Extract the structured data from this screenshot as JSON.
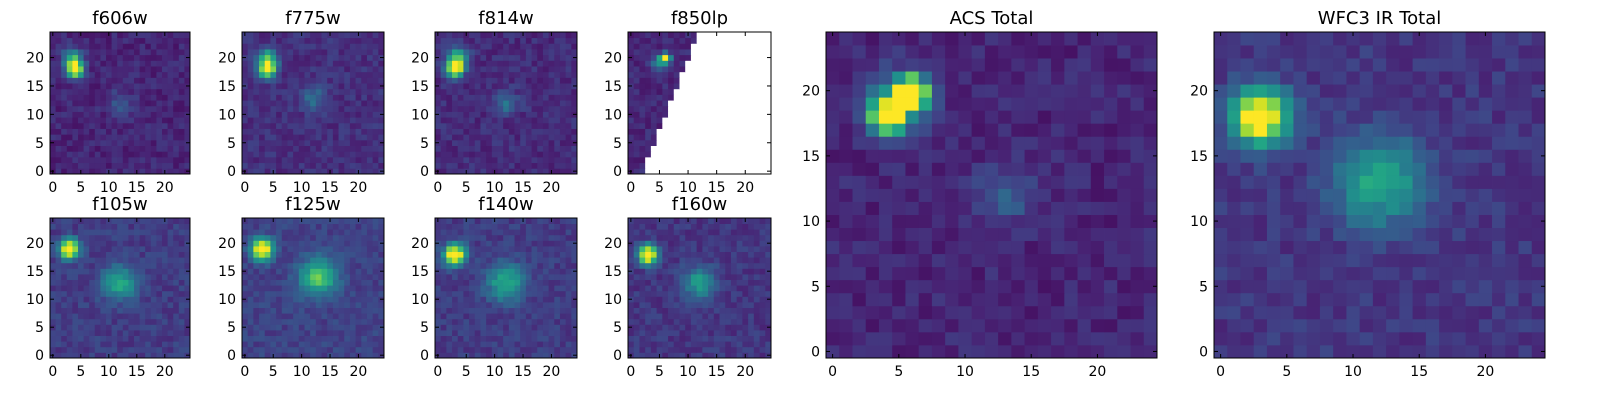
{
  "figure": {
    "description_free": true,
    "colors": {
      "background": "#ffffff",
      "frame": "#000000",
      "masked": "#ffffff"
    }
  },
  "chart_data": [
    {
      "type": "heatmap",
      "title": "f606w",
      "grid": 25,
      "xticks": [
        0,
        5,
        10,
        15,
        20
      ],
      "yticks": [
        0,
        5,
        10,
        15,
        20
      ],
      "xlim": [
        0,
        25
      ],
      "ylim": [
        0,
        25
      ],
      "colormap": "viridis",
      "background_level": 0.05,
      "sources": [
        {
          "x": 4,
          "y": 18,
          "peak": 1.0,
          "sigma": 1.0
        },
        {
          "x": 3.5,
          "y": 20,
          "peak": 0.5,
          "sigma": 1.2
        },
        {
          "x": 12,
          "y": 12,
          "peak": 0.18,
          "sigma": 1.5
        }
      ]
    },
    {
      "type": "heatmap",
      "title": "f775w",
      "grid": 25,
      "xticks": [
        0,
        5,
        10,
        15,
        20
      ],
      "yticks": [
        0,
        5,
        10,
        15,
        20
      ],
      "xlim": [
        0,
        25
      ],
      "ylim": [
        0,
        25
      ],
      "colormap": "viridis",
      "background_level": 0.08,
      "sources": [
        {
          "x": 4,
          "y": 18,
          "peak": 1.0,
          "sigma": 1.0
        },
        {
          "x": 4,
          "y": 20,
          "peak": 0.5,
          "sigma": 1.2
        },
        {
          "x": 12,
          "y": 13,
          "peak": 0.22,
          "sigma": 1.6
        }
      ]
    },
    {
      "type": "heatmap",
      "title": "f814w",
      "grid": 25,
      "xticks": [
        0,
        5,
        10,
        15,
        20
      ],
      "yticks": [
        0,
        5,
        10,
        15,
        20
      ],
      "xlim": [
        0,
        25
      ],
      "ylim": [
        0,
        25
      ],
      "colormap": "viridis",
      "background_level": 0.07,
      "sources": [
        {
          "x": 3,
          "y": 18,
          "peak": 1.0,
          "sigma": 1.0
        },
        {
          "x": 3.5,
          "y": 20,
          "peak": 0.55,
          "sigma": 1.3
        },
        {
          "x": 12,
          "y": 12,
          "peak": 0.25,
          "sigma": 1.4
        }
      ]
    },
    {
      "type": "heatmap",
      "title": "f850lp",
      "grid": 25,
      "xticks": [
        0,
        5,
        10,
        15,
        20
      ],
      "yticks": [
        0,
        5,
        10,
        15,
        20
      ],
      "xlim": [
        0,
        25
      ],
      "ylim": [
        0,
        25
      ],
      "colormap": "viridis",
      "background_level": 0.06,
      "mask": "diagonal",
      "sources": [
        {
          "x": 6,
          "y": 20,
          "peak": 1.0,
          "sigma": 0.6
        },
        {
          "x": 5,
          "y": 19,
          "peak": 0.3,
          "sigma": 1.0
        }
      ]
    },
    {
      "type": "heatmap",
      "title": "f105w",
      "grid": 25,
      "xticks": [
        0,
        5,
        10,
        15,
        20
      ],
      "yticks": [
        0,
        5,
        10,
        15,
        20
      ],
      "xlim": [
        0,
        25
      ],
      "ylim": [
        0,
        25
      ],
      "colormap": "viridis",
      "background_level": 0.12,
      "sources": [
        {
          "x": 3,
          "y": 19,
          "peak": 1.0,
          "sigma": 1.2
        },
        {
          "x": 12,
          "y": 13,
          "peak": 0.42,
          "sigma": 2.2
        }
      ]
    },
    {
      "type": "heatmap",
      "title": "f125w",
      "grid": 25,
      "xticks": [
        0,
        5,
        10,
        15,
        20
      ],
      "yticks": [
        0,
        5,
        10,
        15,
        20
      ],
      "xlim": [
        0,
        25
      ],
      "ylim": [
        0,
        25
      ],
      "colormap": "viridis",
      "background_level": 0.14,
      "sources": [
        {
          "x": 3,
          "y": 19,
          "peak": 1.0,
          "sigma": 1.3
        },
        {
          "x": 13,
          "y": 14,
          "peak": 0.55,
          "sigma": 2.3
        }
      ]
    },
    {
      "type": "heatmap",
      "title": "f140w",
      "grid": 25,
      "xticks": [
        0,
        5,
        10,
        15,
        20
      ],
      "yticks": [
        0,
        5,
        10,
        15,
        20
      ],
      "xlim": [
        0,
        25
      ],
      "ylim": [
        0,
        25
      ],
      "colormap": "viridis",
      "background_level": 0.12,
      "sources": [
        {
          "x": 3,
          "y": 18,
          "peak": 1.0,
          "sigma": 1.3
        },
        {
          "x": 12,
          "y": 13,
          "peak": 0.45,
          "sigma": 2.3
        }
      ]
    },
    {
      "type": "heatmap",
      "title": "f160w",
      "grid": 25,
      "xticks": [
        0,
        5,
        10,
        15,
        20
      ],
      "yticks": [
        0,
        5,
        10,
        15,
        20
      ],
      "xlim": [
        0,
        25
      ],
      "ylim": [
        0,
        25
      ],
      "colormap": "viridis",
      "background_level": 0.1,
      "sources": [
        {
          "x": 3,
          "y": 18,
          "peak": 1.0,
          "sigma": 1.2
        },
        {
          "x": 12,
          "y": 13,
          "peak": 0.4,
          "sigma": 2.0
        }
      ]
    },
    {
      "type": "heatmap",
      "title": "ACS Total",
      "grid": 25,
      "xticks": [
        0,
        5,
        10,
        15,
        20
      ],
      "yticks": [
        0,
        5,
        10,
        15,
        20
      ],
      "xlim": [
        0,
        25
      ],
      "ylim": [
        0,
        25
      ],
      "colormap": "viridis",
      "background_level": 0.05,
      "sources": [
        {
          "x": 4,
          "y": 18,
          "peak": 1.0,
          "sigma": 0.8
        },
        {
          "x": 6,
          "y": 20,
          "peak": 0.95,
          "sigma": 0.8
        },
        {
          "x": 5,
          "y": 19,
          "peak": 0.5,
          "sigma": 1.6
        },
        {
          "x": 13,
          "y": 12,
          "peak": 0.2,
          "sigma": 1.5
        }
      ]
    },
    {
      "type": "heatmap",
      "title": "WFC3 IR Total",
      "grid": 25,
      "xticks": [
        0,
        5,
        10,
        15,
        20
      ],
      "yticks": [
        0,
        5,
        10,
        15,
        20
      ],
      "xlim": [
        0,
        25
      ],
      "ylim": [
        0,
        25
      ],
      "colormap": "viridis",
      "background_level": 0.1,
      "sources": [
        {
          "x": 3,
          "y": 18,
          "peak": 1.0,
          "sigma": 1.5
        },
        {
          "x": 12,
          "y": 13,
          "peak": 0.45,
          "sigma": 2.4
        }
      ]
    }
  ]
}
